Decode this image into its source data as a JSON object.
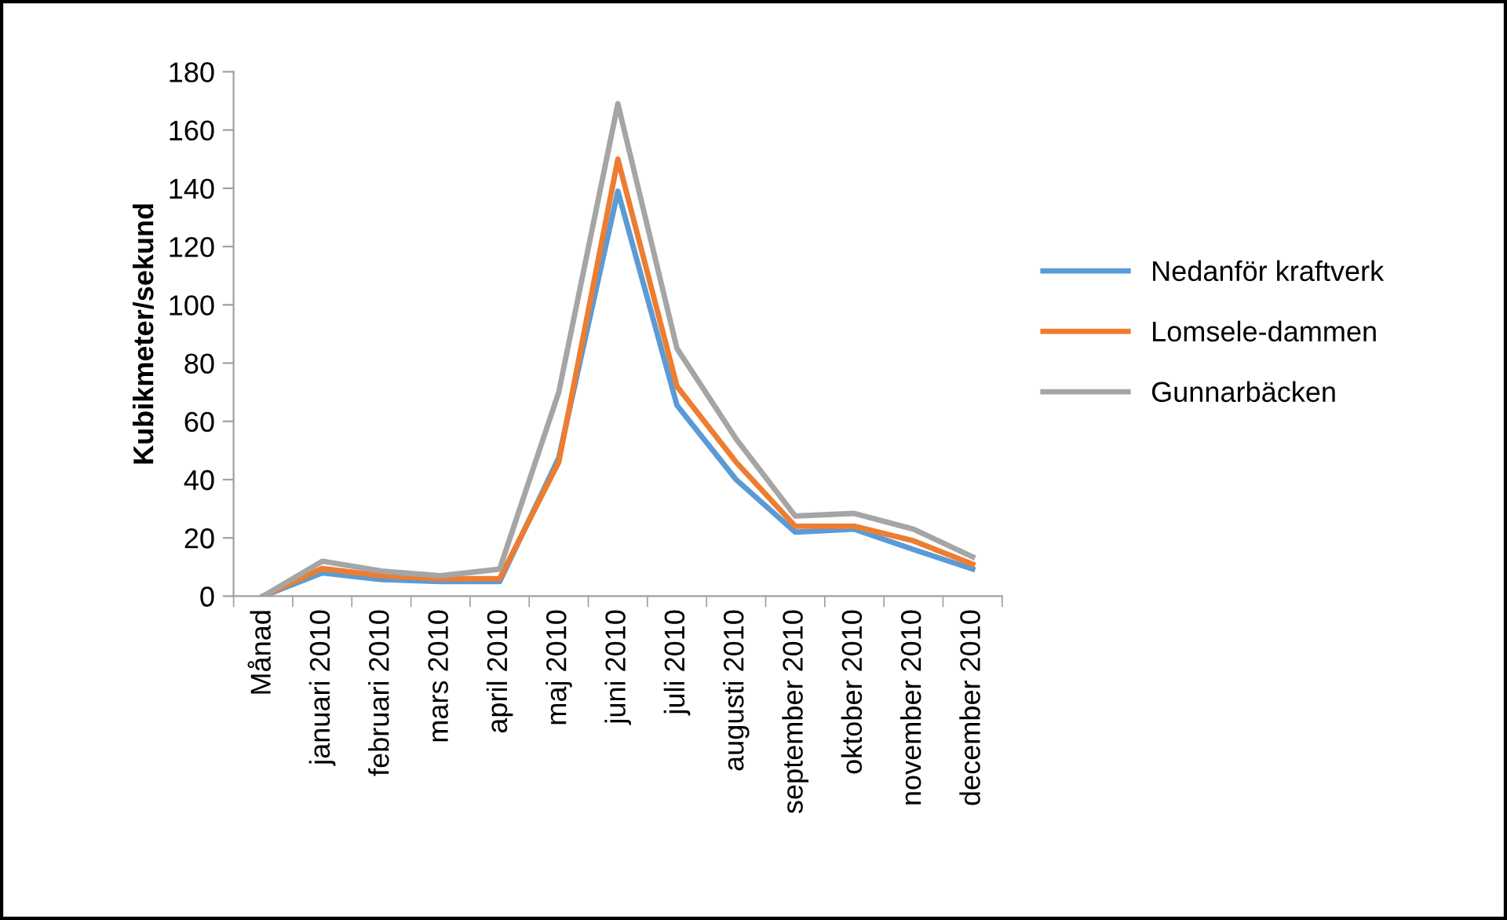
{
  "chart_data": {
    "type": "line",
    "ylabel": "Kubikmeter/sekund",
    "categories": [
      "Månad",
      "januari 2010",
      "februari 2010",
      "mars 2010",
      "april 2010",
      "maj 2010",
      "juni 2010",
      "juli 2010",
      "augusti 2010",
      "september 2010",
      "oktober 2010",
      "november 2010",
      "december 2010"
    ],
    "series": [
      {
        "name": "Nedanför kraftverk",
        "color": "#5b9bd5",
        "values": [
          0,
          8,
          5.7,
          5,
          5,
          47.5,
          139,
          65.5,
          40,
          22,
          23,
          16,
          9.3
        ]
      },
      {
        "name": "Lomsele-dammen",
        "color": "#ed7d31",
        "values": [
          0,
          9.5,
          7,
          6,
          6,
          46,
          150,
          72,
          46,
          24,
          24,
          19,
          11
        ]
      },
      {
        "name": "Gunnarbäcken",
        "color": "#a5a5a5",
        "values": [
          0,
          12,
          8.6,
          7,
          9.3,
          70,
          169,
          85,
          54,
          27.5,
          28.4,
          23,
          13.5
        ]
      }
    ],
    "ylim": [
      0,
      180
    ],
    "yticks": [
      0,
      20,
      40,
      60,
      80,
      100,
      120,
      140,
      160,
      180
    ],
    "grid": false,
    "legend": "right",
    "marker": "none",
    "line_style": "solid"
  }
}
